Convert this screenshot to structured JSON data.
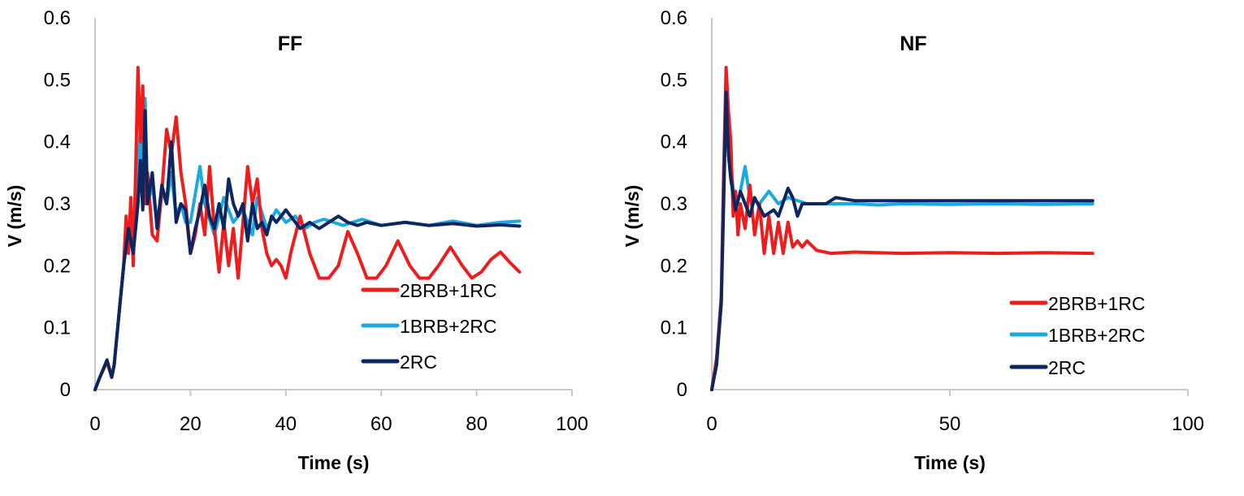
{
  "chart_data": [
    {
      "type": "line",
      "title": "FF",
      "xlabel": "Time (s)",
      "ylabel": "V (m/s)",
      "xlim": [
        0,
        100
      ],
      "ylim": [
        0,
        0.6
      ],
      "xticks": [
        "0",
        "20",
        "40",
        "60",
        "80",
        "100"
      ],
      "yticks": [
        "0",
        "0.1",
        "0.2",
        "0.3",
        "0.4",
        "0.5",
        "0.6"
      ],
      "xtick_values": [
        0,
        20,
        40,
        60,
        80,
        100
      ],
      "grid": false,
      "legend_position": "bottom-right",
      "series": [
        {
          "name": "2BRB+1RC",
          "color": "#ee1c1c",
          "x": [
            0,
            1,
            2.5,
            3.5,
            4,
            5,
            6,
            6.5,
            7,
            7.5,
            8,
            8.5,
            9,
            9.5,
            10,
            10.5,
            11,
            12,
            13,
            14,
            15,
            16,
            17,
            18,
            19,
            20,
            21,
            22,
            23,
            24,
            25,
            26,
            27,
            28,
            29,
            30,
            31,
            32,
            33,
            34,
            35,
            36,
            37,
            38,
            39,
            40,
            41,
            43,
            45,
            47,
            49,
            51,
            53,
            55,
            57,
            59,
            61,
            63.5,
            66,
            68,
            70,
            72,
            74.5,
            77,
            79,
            81,
            83,
            85,
            87,
            89
          ],
          "y": [
            0,
            0.02,
            0.045,
            0.02,
            0.04,
            0.12,
            0.2,
            0.28,
            0.22,
            0.31,
            0.2,
            0.35,
            0.52,
            0.4,
            0.49,
            0.3,
            0.35,
            0.25,
            0.24,
            0.32,
            0.42,
            0.38,
            0.44,
            0.35,
            0.3,
            0.22,
            0.25,
            0.3,
            0.25,
            0.36,
            0.26,
            0.19,
            0.27,
            0.2,
            0.26,
            0.18,
            0.27,
            0.36,
            0.3,
            0.34,
            0.26,
            0.22,
            0.2,
            0.21,
            0.2,
            0.18,
            0.22,
            0.28,
            0.22,
            0.18,
            0.18,
            0.2,
            0.255,
            0.22,
            0.18,
            0.18,
            0.2,
            0.24,
            0.2,
            0.18,
            0.18,
            0.2,
            0.23,
            0.2,
            0.18,
            0.19,
            0.21,
            0.222,
            0.205,
            0.19
          ]
        },
        {
          "name": "1BRB+2RC",
          "color": "#1aa9e3",
          "x": [
            0,
            1,
            2.5,
            3.5,
            4,
            5,
            6,
            7,
            8,
            9,
            9.5,
            10,
            10.5,
            11,
            12,
            13,
            14,
            15,
            16,
            17,
            18,
            19,
            20,
            22,
            23,
            25,
            27,
            29,
            31,
            33,
            34,
            36,
            38,
            40,
            42,
            44,
            46,
            48,
            52,
            56,
            60,
            65,
            70,
            75,
            80,
            85,
            89
          ],
          "y": [
            0,
            0.02,
            0.045,
            0.02,
            0.04,
            0.12,
            0.2,
            0.27,
            0.24,
            0.36,
            0.42,
            0.3,
            0.47,
            0.3,
            0.33,
            0.27,
            0.32,
            0.3,
            0.35,
            0.28,
            0.3,
            0.27,
            0.27,
            0.36,
            0.3,
            0.25,
            0.31,
            0.27,
            0.29,
            0.25,
            0.31,
            0.26,
            0.29,
            0.27,
            0.28,
            0.26,
            0.27,
            0.275,
            0.265,
            0.275,
            0.265,
            0.27,
            0.265,
            0.272,
            0.265,
            0.27,
            0.272
          ]
        },
        {
          "name": "2RC",
          "color": "#0d2660",
          "x": [
            0,
            1,
            2.5,
            3.5,
            4,
            5,
            6,
            7,
            8,
            9,
            9.5,
            10,
            10.5,
            11,
            12,
            13,
            14,
            15,
            16,
            17,
            18,
            19,
            20,
            21,
            22,
            23,
            24,
            25,
            26,
            27,
            28,
            29,
            30,
            31,
            32,
            33,
            34,
            35,
            36,
            37,
            38,
            40,
            41,
            42,
            43,
            45,
            47,
            49,
            51,
            53,
            55,
            57,
            60,
            65,
            70,
            75,
            80,
            85,
            89
          ],
          "y": [
            0,
            0.02,
            0.048,
            0.02,
            0.04,
            0.12,
            0.2,
            0.26,
            0.22,
            0.3,
            0.37,
            0.29,
            0.45,
            0.3,
            0.35,
            0.26,
            0.33,
            0.3,
            0.4,
            0.27,
            0.3,
            0.29,
            0.22,
            0.26,
            0.29,
            0.33,
            0.28,
            0.26,
            0.3,
            0.26,
            0.34,
            0.3,
            0.28,
            0.3,
            0.24,
            0.3,
            0.26,
            0.27,
            0.25,
            0.28,
            0.27,
            0.29,
            0.28,
            0.27,
            0.26,
            0.27,
            0.26,
            0.27,
            0.28,
            0.27,
            0.265,
            0.27,
            0.265,
            0.27,
            0.265,
            0.268,
            0.264,
            0.266,
            0.264
          ]
        }
      ]
    },
    {
      "type": "line",
      "title": "NF",
      "xlabel": "Time (s)",
      "ylabel": "V (m/s)",
      "xlim": [
        0,
        100
      ],
      "ylim": [
        0,
        0.6
      ],
      "xticks": [
        "0",
        "50",
        "100"
      ],
      "yticks": [
        "0",
        "0.1",
        "0.2",
        "0.3",
        "0.4",
        "0.5",
        "0.6"
      ],
      "xtick_values": [
        0,
        50,
        100
      ],
      "grid": false,
      "legend_position": "bottom-right",
      "series": [
        {
          "name": "2BRB+1RC",
          "color": "#ee1c1c",
          "x": [
            0,
            1,
            2,
            2.5,
            3,
            3.5,
            4,
            4.5,
            5,
            5.5,
            6,
            7,
            8,
            9,
            10,
            11,
            12,
            13,
            14,
            15,
            16,
            17,
            18,
            19,
            20,
            22,
            25,
            30,
            40,
            50,
            60,
            70,
            80
          ],
          "y": [
            0,
            0.05,
            0.15,
            0.35,
            0.52,
            0.45,
            0.4,
            0.28,
            0.32,
            0.25,
            0.3,
            0.26,
            0.33,
            0.25,
            0.3,
            0.22,
            0.28,
            0.22,
            0.27,
            0.22,
            0.27,
            0.23,
            0.24,
            0.23,
            0.24,
            0.225,
            0.22,
            0.222,
            0.22,
            0.221,
            0.22,
            0.221,
            0.22
          ]
        },
        {
          "name": "1BRB+2RC",
          "color": "#1aa9e3",
          "x": [
            0,
            1,
            2,
            2.5,
            3,
            4,
            5,
            6,
            7,
            8,
            10,
            12,
            14,
            16,
            20,
            25,
            30,
            35,
            40,
            50,
            60,
            70,
            80
          ],
          "y": [
            0,
            0.05,
            0.15,
            0.35,
            0.48,
            0.36,
            0.29,
            0.32,
            0.36,
            0.31,
            0.3,
            0.32,
            0.3,
            0.31,
            0.3,
            0.3,
            0.3,
            0.298,
            0.3,
            0.299,
            0.3,
            0.299,
            0.3
          ]
        },
        {
          "name": "2RC",
          "color": "#0d2660",
          "x": [
            0,
            1,
            2,
            2.5,
            3,
            3.5,
            4,
            5,
            6,
            7,
            8,
            9,
            11,
            13,
            14,
            16,
            17,
            18,
            19,
            20,
            22,
            24,
            26,
            30,
            40,
            50,
            60,
            70,
            80
          ],
          "y": [
            0,
            0.04,
            0.14,
            0.3,
            0.48,
            0.38,
            0.34,
            0.29,
            0.32,
            0.3,
            0.28,
            0.31,
            0.28,
            0.29,
            0.28,
            0.325,
            0.31,
            0.28,
            0.3,
            0.3,
            0.3,
            0.3,
            0.31,
            0.305,
            0.305,
            0.305,
            0.305,
            0.305,
            0.305
          ]
        }
      ]
    }
  ]
}
